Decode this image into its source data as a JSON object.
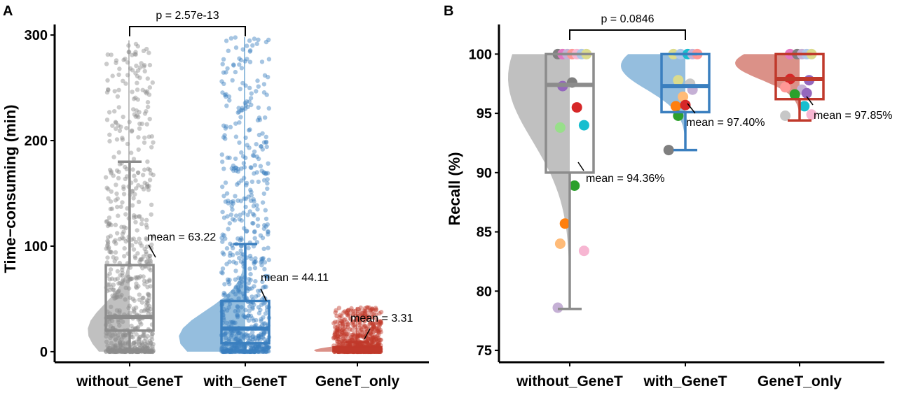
{
  "chart_data": [
    {
      "panel": "A",
      "type": "violin-box-jitter",
      "ylabel": "Time−consuming (min)",
      "ylim": [
        -10,
        310
      ],
      "yticks": [
        0,
        100,
        200,
        300
      ],
      "categories": [
        "without_GeneT",
        "with_GeneT",
        "GeneT_only"
      ],
      "colors": [
        "#8c8c8c",
        "#3a7fbf",
        "#c0392b"
      ],
      "light_colors": [
        "#bdbdbd",
        "#8fbbdc",
        "#d98b82"
      ],
      "groups": [
        {
          "name": "without_GeneT",
          "mean": 63.22,
          "median": 33,
          "q1": 20,
          "q3": 82,
          "whisker_low": 0,
          "whisker_high": 180,
          "max": 295,
          "n_points": 900
        },
        {
          "name": "with_GeneT",
          "mean": 44.11,
          "median": 22,
          "q1": 8,
          "q3": 48,
          "whisker_low": 0,
          "whisker_high": 102,
          "max": 298,
          "n_points": 1500
        },
        {
          "name": "GeneT_only",
          "mean": 3.31,
          "median": 2,
          "q1": 1,
          "q3": 4,
          "whisker_low": 0,
          "whisker_high": 9,
          "max": 42,
          "n_points": 1200
        }
      ],
      "mean_labels": [
        "mean = 63.22",
        "mean = 44.11",
        "mean = 3.31"
      ],
      "comparison": {
        "from": "without_GeneT",
        "to": "with_GeneT",
        "label": "p = 2.57e-13"
      }
    },
    {
      "panel": "B",
      "type": "violin-box-jitter",
      "ylabel": "Recall (%)",
      "ylim": [
        74,
        102.5
      ],
      "yticks": [
        75,
        80,
        85,
        90,
        95,
        100
      ],
      "categories": [
        "without_GeneT",
        "with_GeneT",
        "GeneT_only"
      ],
      "colors": [
        "#8c8c8c",
        "#3a7fbf",
        "#c0392b"
      ],
      "light_colors": [
        "#bdbdbd",
        "#8fbbdc",
        "#d98b82"
      ],
      "groups": [
        {
          "name": "without_GeneT",
          "mean": 94.36,
          "median": 97.4,
          "q1": 90,
          "q3": 100,
          "whisker_low": 78.5,
          "whisker_high": 100,
          "points": [
            [
              -0.25,
              100,
              "#7f7f7f"
            ],
            [
              -0.15,
              100,
              "#e377c2"
            ],
            [
              -0.05,
              100,
              "#c5b0d5"
            ],
            [
              0.05,
              100,
              "#ff9896"
            ],
            [
              0.15,
              100,
              "#f7b6d2"
            ],
            [
              0.25,
              100,
              "#aec7e8"
            ],
            [
              0.35,
              100,
              "#dbdb8d"
            ],
            [
              -0.15,
              97.3,
              "#9467bd"
            ],
            [
              0.05,
              97.6,
              "#7f7f7f"
            ],
            [
              0.15,
              95.5,
              "#d62728"
            ],
            [
              0.3,
              94,
              "#17becf"
            ],
            [
              -0.2,
              93.8,
              "#98df8a"
            ],
            [
              0.1,
              88.9,
              "#2ca02c"
            ],
            [
              -0.1,
              85.7,
              "#ff7f0e"
            ],
            [
              -0.2,
              84,
              "#ffbb78"
            ],
            [
              0.3,
              83.4,
              "#f7b6d2"
            ],
            [
              -0.25,
              78.6,
              "#c5b0d5"
            ]
          ]
        },
        {
          "name": "with_GeneT",
          "mean": 97.4,
          "median": 97.3,
          "q1": 95.1,
          "q3": 100,
          "whisker_low": 91.9,
          "whisker_high": 100,
          "points": [
            [
              -0.25,
              100,
              "#dbdb8d"
            ],
            [
              -0.1,
              100,
              "#aec7e8"
            ],
            [
              0.05,
              100,
              "#17becf"
            ],
            [
              0.15,
              100,
              "#c5b0d5"
            ],
            [
              0.25,
              100,
              "#ff9896"
            ],
            [
              -0.15,
              97.8,
              "#dbdb8d"
            ],
            [
              0.1,
              97.5,
              "#c7c7c7"
            ],
            [
              0.15,
              97,
              "#c5b0d5"
            ],
            [
              -0.05,
              96.4,
              "#ffbb78"
            ],
            [
              -0.2,
              95.6,
              "#ff7f0e"
            ],
            [
              0.0,
              95.7,
              "#d62728"
            ],
            [
              -0.15,
              94.8,
              "#2ca02c"
            ],
            [
              -0.35,
              91.9,
              "#7f7f7f"
            ]
          ]
        },
        {
          "name": "GeneT_only",
          "mean": 97.85,
          "median": 97.9,
          "q1": 96.2,
          "q3": 100,
          "whisker_low": 94.4,
          "whisker_high": 100,
          "points": [
            [
              -0.2,
              100,
              "#e377c2"
            ],
            [
              -0.05,
              100,
              "#7f7f7f"
            ],
            [
              0.05,
              100,
              "#c5b0d5"
            ],
            [
              0.15,
              100,
              "#aec7e8"
            ],
            [
              0.25,
              100,
              "#dbdb8d"
            ],
            [
              -0.2,
              97.9,
              "#d62728"
            ],
            [
              0.2,
              97.8,
              "#9467bd"
            ],
            [
              -0.3,
              97.2,
              "#ff9896"
            ],
            [
              0.05,
              97,
              "#c5b0d5"
            ],
            [
              -0.1,
              96.6,
              "#2ca02c"
            ],
            [
              0.15,
              96.7,
              "#9467bd"
            ],
            [
              0.1,
              95.6,
              "#17becf"
            ],
            [
              -0.3,
              94.8,
              "#c7c7c7"
            ],
            [
              0.25,
              94.9,
              "#f7b6d2"
            ]
          ]
        }
      ],
      "mean_labels": [
        "mean = 94.36%",
        "mean = 97.40%",
        "mean = 97.85%"
      ],
      "comparison": {
        "from": "without_GeneT",
        "to": "with_GeneT",
        "label": "p =  0.0846"
      }
    }
  ]
}
